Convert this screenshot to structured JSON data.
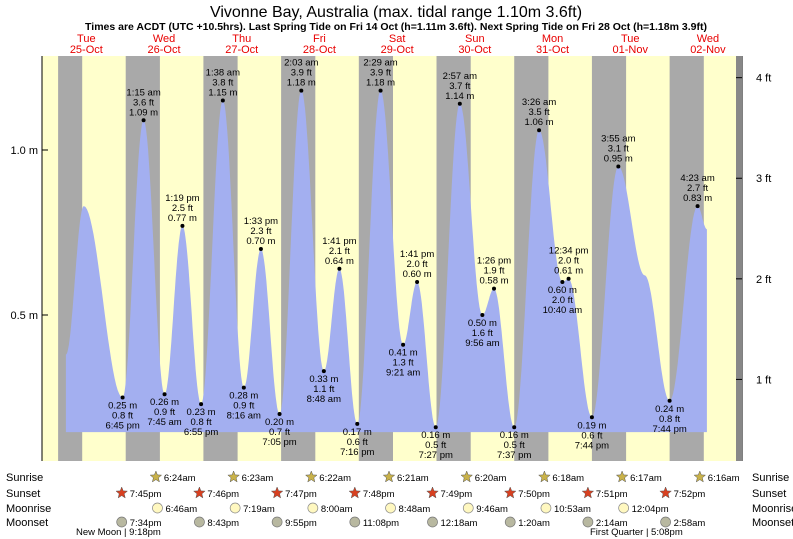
{
  "chart_data": {
    "type": "area",
    "title": "Vivonne Bay, Australia (max. tidal range 1.10m 3.6ft)",
    "subtitle": "Times are ACDT (UTC +10.5hrs). Last Spring Tide on Fri 14 Oct (h=1.11m 3.6ft). Next Spring Tide on Fri 28 Oct (h=1.18m 3.9ft)",
    "xlabel": "",
    "ylabel": "",
    "ylim": [
      0.0,
      1.38
    ],
    "left_ticks": [
      "0.5 m",
      "1.0 m"
    ],
    "right_ticks": [
      "1 ft",
      "2 ft",
      "3 ft",
      "4 ft"
    ],
    "colors": {
      "day": "#ffffcc",
      "night": "#a9a9a9",
      "water": "#a3aff0",
      "day_label": "#e80000",
      "sunset_star": "#d84020",
      "sunrise_star": "#c9b24a"
    },
    "days": [
      {
        "dow": "Tue",
        "date": "25-Oct"
      },
      {
        "dow": "Wed",
        "date": "26-Oct"
      },
      {
        "dow": "Thu",
        "date": "27-Oct"
      },
      {
        "dow": "Fri",
        "date": "28-Oct"
      },
      {
        "dow": "Sat",
        "date": "29-Oct"
      },
      {
        "dow": "Sun",
        "date": "30-Oct"
      },
      {
        "dow": "Mon",
        "date": "31-Oct"
      },
      {
        "dow": "Tue",
        "date": "01-Nov"
      },
      {
        "dow": "Wed",
        "date": "02-Nov"
      }
    ],
    "tides": [
      {
        "t": 0.28,
        "h": 0.83,
        "kind": "high",
        "lines": []
      },
      {
        "t": 0.78,
        "h": 0.25,
        "kind": "low",
        "lines": [
          "0.25 m",
          "0.8 ft",
          "6:45 pm"
        ]
      },
      {
        "t": 1.05,
        "h": 1.09,
        "kind": "high",
        "lines": [
          "1:15 am",
          "3.6 ft",
          "1.09 m"
        ]
      },
      {
        "t": 1.32,
        "h": 0.26,
        "kind": "low",
        "lines": [
          "0.26 m",
          "0.9 ft",
          "7:45 am"
        ]
      },
      {
        "t": 1.55,
        "h": 0.77,
        "kind": "high",
        "lines": [
          "1:19 pm",
          "2.5 ft",
          "0.77 m"
        ]
      },
      {
        "t": 1.79,
        "h": 0.23,
        "kind": "low",
        "lines": [
          "0.23 m",
          "0.8 ft",
          "6:55 pm"
        ]
      },
      {
        "t": 2.07,
        "h": 1.15,
        "kind": "high",
        "lines": [
          "1:38 am",
          "3.8 ft",
          "1.15 m"
        ]
      },
      {
        "t": 2.34,
        "h": 0.28,
        "kind": "low",
        "lines": [
          "0.28 m",
          "0.9 ft",
          "8:16 am"
        ]
      },
      {
        "t": 2.56,
        "h": 0.7,
        "kind": "high",
        "lines": [
          "1:33 pm",
          "2.3 ft",
          "0.70 m"
        ]
      },
      {
        "t": 2.8,
        "h": 0.2,
        "kind": "low",
        "lines": [
          "0.20 m",
          "0.7 ft",
          "7:05 pm"
        ]
      },
      {
        "t": 3.08,
        "h": 1.18,
        "kind": "high",
        "lines": [
          "2:03 am",
          "3.9 ft",
          "1.18 m"
        ]
      },
      {
        "t": 3.37,
        "h": 0.33,
        "kind": "low",
        "lines": [
          "0.33 m",
          "1.1 ft",
          "8:48 am"
        ]
      },
      {
        "t": 3.57,
        "h": 0.64,
        "kind": "high",
        "lines": [
          "1:41 pm",
          "2.1 ft",
          "0.64 m"
        ]
      },
      {
        "t": 3.8,
        "h": 0.17,
        "kind": "low",
        "lines": [
          "0.17 m",
          "0.6 ft",
          "7:16 pm"
        ]
      },
      {
        "t": 4.1,
        "h": 1.18,
        "kind": "high",
        "lines": [
          "2:29 am",
          "3.9 ft",
          "1.18 m"
        ]
      },
      {
        "t": 4.39,
        "h": 0.41,
        "kind": "low",
        "lines": [
          "0.41 m",
          "1.3 ft",
          "9:21 am"
        ]
      },
      {
        "t": 4.57,
        "h": 0.6,
        "kind": "high",
        "lines": [
          "1:41 pm",
          "2.0 ft",
          "0.60 m"
        ]
      },
      {
        "t": 4.81,
        "h": 0.16,
        "kind": "low",
        "lines": [
          "0.16 m",
          "0.5 ft",
          "7:27 pm"
        ]
      },
      {
        "t": 5.12,
        "h": 1.14,
        "kind": "high",
        "lines": [
          "2:57 am",
          "3.7 ft",
          "1.14 m"
        ]
      },
      {
        "t": 5.41,
        "h": 0.5,
        "kind": "low",
        "lines": [
          "0.50 m",
          "1.6 ft",
          "9:56 am"
        ]
      },
      {
        "t": 5.56,
        "h": 0.58,
        "kind": "high",
        "lines": [
          "1:26 pm",
          "1.9 ft",
          "0.58 m"
        ]
      },
      {
        "t": 5.82,
        "h": 0.16,
        "kind": "low",
        "lines": [
          "0.16 m",
          "0.5 ft",
          "7:37 pm"
        ]
      },
      {
        "t": 6.14,
        "h": 1.06,
        "kind": "high",
        "lines": [
          "3:26 am",
          "3.5 ft",
          "1.06 m"
        ]
      },
      {
        "t": 6.44,
        "h": 0.6,
        "kind": "low",
        "lines": [
          "0.60 m",
          "2.0 ft",
          "10:40 am"
        ]
      },
      {
        "t": 6.52,
        "h": 0.61,
        "kind": "high",
        "lines": [
          "12:34 pm",
          "2.0 ft",
          "0.61 m"
        ]
      },
      {
        "t": 6.82,
        "h": 0.19,
        "kind": "low",
        "lines": [
          "0.19 m",
          "0.6 ft",
          "7:44 pm"
        ]
      },
      {
        "t": 7.16,
        "h": 0.95,
        "kind": "high",
        "lines": [
          "3:55 am",
          "3.1 ft",
          "0.95 m"
        ]
      },
      {
        "t": 7.5,
        "h": 0.62,
        "kind": "low",
        "lines": []
      },
      {
        "t": 7.82,
        "h": 0.24,
        "kind": "low",
        "lines": [
          "0.24 m",
          "0.8 ft",
          "7:44 pm"
        ]
      },
      {
        "t": 8.18,
        "h": 0.83,
        "kind": "high",
        "lines": [
          "4:23 am",
          "2.7 ft",
          "0.83 m"
        ]
      },
      {
        "t": 8.3,
        "h": 0.76,
        "kind": "low",
        "lines": []
      }
    ],
    "curve_start": 0.05,
    "curve_end": 8.3,
    "night_spans": [
      [
        -0.05,
        0.26
      ],
      [
        0.82,
        1.26
      ],
      [
        1.82,
        2.26
      ],
      [
        2.82,
        3.26
      ],
      [
        3.82,
        4.26
      ],
      [
        4.82,
        5.26
      ],
      [
        5.82,
        6.26
      ],
      [
        6.82,
        7.26
      ],
      [
        7.82,
        8.26
      ],
      [
        8.83,
        9.0
      ]
    ],
    "sun": {
      "sunrise": [
        "6:24am",
        "6:23am",
        "6:22am",
        "6:21am",
        "6:20am",
        "6:18am",
        "6:17am",
        "6:16am"
      ],
      "sunset": [
        "7:45pm",
        "7:46pm",
        "7:47pm",
        "7:48pm",
        "7:49pm",
        "7:50pm",
        "7:51pm",
        "7:52pm"
      ],
      "moonrise": [
        "6:46am",
        "7:19am",
        "8:00am",
        "8:48am",
        "9:46am",
        "10:53am",
        "12:04pm"
      ],
      "moonset": [
        "7:34pm",
        "8:43pm",
        "9:55pm",
        "11:08pm",
        "12:18am",
        "1:20am",
        "2:14am",
        "2:58am"
      ]
    },
    "row_labels": [
      "Sunrise",
      "Sunset",
      "Moonrise",
      "Moonset"
    ],
    "moon_phases": [
      "New Moon | 9:18pm",
      "First Quarter | 5:08pm"
    ]
  }
}
